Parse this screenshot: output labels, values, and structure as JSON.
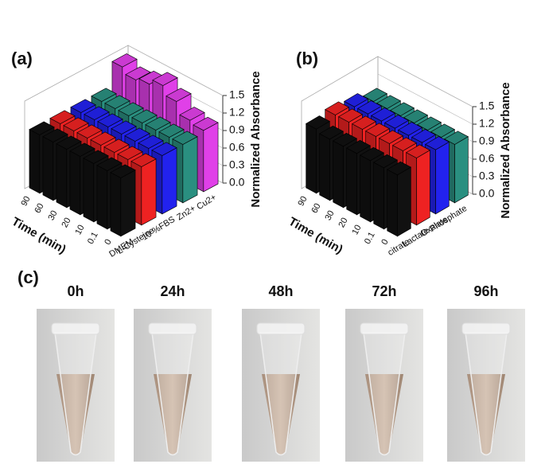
{
  "chart_data": [
    {
      "type": "bar3d",
      "panel_label": "(a)",
      "x_label": "Time (min)",
      "z_label": "Normalized Absorbance",
      "categories": [
        "0",
        "0.1",
        "10",
        "20",
        "30",
        "60",
        "90"
      ],
      "series": [
        {
          "name": "DMEM",
          "color": "#111111",
          "values": [
            1.0,
            1.0,
            1.0,
            1.0,
            1.0,
            1.0,
            1.0
          ]
        },
        {
          "name": "L-Cysteine",
          "color": "#ee2222",
          "values": [
            1.0,
            1.0,
            1.0,
            1.0,
            1.0,
            1.0,
            1.0
          ]
        },
        {
          "name": "10 %FBS",
          "color": "#2222ee",
          "values": [
            1.0,
            1.0,
            1.0,
            1.0,
            1.0,
            1.0,
            1.0
          ]
        },
        {
          "name": "Zn2+",
          "color": "#2a8f80",
          "values": [
            1.0,
            1.0,
            1.0,
            1.0,
            1.0,
            1.0,
            1.0
          ]
        },
        {
          "name": "Cu2+",
          "color": "#e040e8",
          "values": [
            1.05,
            1.1,
            1.3,
            1.45,
            1.35,
            1.3,
            1.4
          ]
        }
      ],
      "zlim": [
        0,
        1.5
      ],
      "zticks": [
        {
          "value": 0,
          "label": "0.0"
        },
        0.3,
        0.6,
        0.9,
        1.2,
        1.5
      ]
    },
    {
      "type": "bar3d",
      "panel_label": "(b)",
      "x_label": "Time (min)",
      "z_label": "Normalized Absorbance",
      "categories": [
        "0",
        "0.1",
        "10",
        "20",
        "30",
        "60",
        "90"
      ],
      "series": [
        {
          "name": "citrate",
          "color": "#111111",
          "values": [
            1.05,
            1.05,
            1.05,
            1.05,
            1.05,
            1.05,
            1.1
          ]
        },
        {
          "name": "Lactate",
          "color": "#ee2222",
          "values": [
            1.15,
            1.15,
            1.15,
            1.15,
            1.15,
            1.15,
            1.15
          ]
        },
        {
          "name": "Oxalate",
          "color": "#2222ee",
          "values": [
            1.1,
            1.1,
            1.1,
            1.1,
            1.1,
            1.1,
            1.1
          ]
        },
        {
          "name": "Phosphate",
          "color": "#2a8f80",
          "values": [
            1.0,
            1.0,
            1.0,
            1.0,
            1.0,
            1.0,
            1.0
          ]
        }
      ],
      "zlim": [
        0,
        1.5
      ],
      "zticks": [
        {
          "value": 0,
          "label": "0.0"
        },
        0.3,
        0.6,
        0.9,
        1.2,
        1.5
      ]
    }
  ],
  "panel_c": {
    "label": "(c)",
    "images": [
      {
        "label": "0h"
      },
      {
        "label": "24h"
      },
      {
        "label": "48h"
      },
      {
        "label": "72h"
      },
      {
        "label": "96h"
      }
    ]
  }
}
